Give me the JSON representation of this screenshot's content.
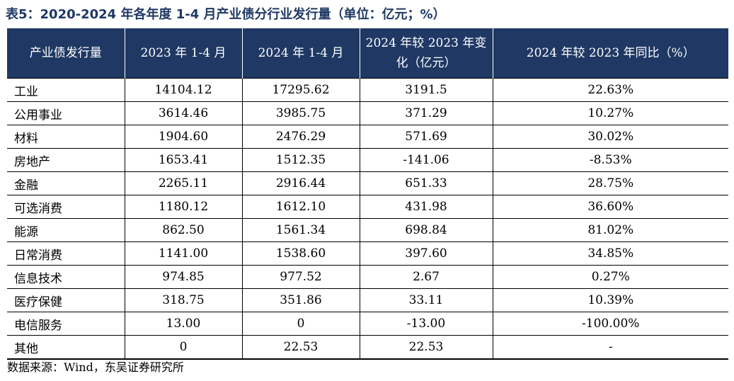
{
  "title": "表5：2020-2024 年各年度 1-4 月产业债分行业发行量（单位：亿元；%）",
  "table": {
    "headers": [
      "产业债发行量",
      "2023 年 1-4 月",
      "2024 年 1-4 月",
      "2024 年较 2023 年变化（亿元）",
      "2024 年较 2023 年同比（%）"
    ],
    "rows": [
      [
        "工业",
        "14104.12",
        "17295.62",
        "3191.5",
        "22.63%"
      ],
      [
        "公用事业",
        "3614.46",
        "3985.75",
        "371.29",
        "10.27%"
      ],
      [
        "材料",
        "1904.60",
        "2476.29",
        "571.69",
        "30.02%"
      ],
      [
        "房地产",
        "1653.41",
        "1512.35",
        "-141.06",
        "-8.53%"
      ],
      [
        "金融",
        "2265.11",
        "2916.44",
        "651.33",
        "28.75%"
      ],
      [
        "可选消费",
        "1180.12",
        "1612.10",
        "431.98",
        "36.60%"
      ],
      [
        "能源",
        "862.50",
        "1561.34",
        "698.84",
        "81.02%"
      ],
      [
        "日常消费",
        "1141.00",
        "1538.60",
        "397.60",
        "34.85%"
      ],
      [
        "信息技术",
        "974.85",
        "977.52",
        "2.67",
        "0.27%"
      ],
      [
        "医疗保健",
        "318.75",
        "351.86",
        "33.11",
        "10.39%"
      ],
      [
        "电信服务",
        "13.00",
        "0",
        "-13.00",
        "-100.00%"
      ],
      [
        "其他",
        "0",
        "22.53",
        "22.53",
        "-"
      ]
    ]
  },
  "source": "数据来源：Wind，东吴证券研究所",
  "colors": {
    "header_bg": "#1f3864",
    "title": "#1f3864"
  }
}
